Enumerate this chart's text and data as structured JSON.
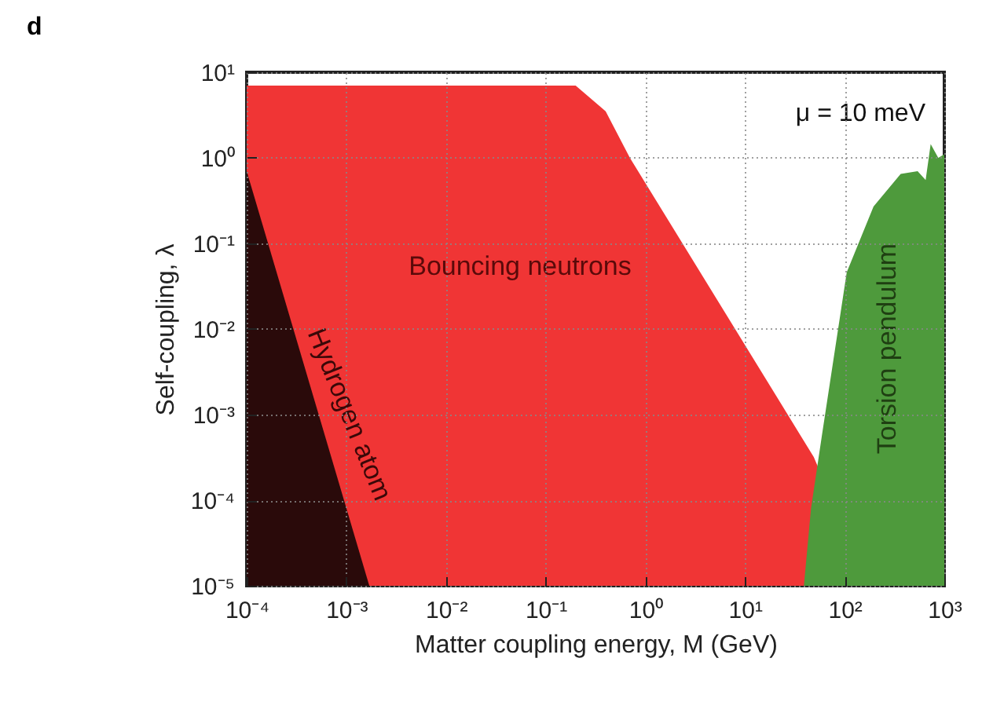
{
  "chart_data": {
    "type": "area",
    "title": "d",
    "xlabel": "Matter coupling energy, M (GeV)",
    "ylabel": "Self-coupling, λ",
    "log": "xy",
    "grid": true,
    "xlim": [
      0.0001,
      1000
    ],
    "ylim": [
      1e-05,
      10
    ],
    "xticks": [
      {
        "value": 0.0001,
        "label": "10⁻⁴"
      },
      {
        "value": 0.001,
        "label": "10⁻³"
      },
      {
        "value": 0.01,
        "label": "10⁻²"
      },
      {
        "value": 0.1,
        "label": "10⁻¹"
      },
      {
        "value": 1,
        "label": "10⁰"
      },
      {
        "value": 10,
        "label": "10¹"
      },
      {
        "value": 100,
        "label": "10²"
      },
      {
        "value": 1000,
        "label": "10³"
      }
    ],
    "yticks": [
      {
        "value": 1e-05,
        "label": "10⁻⁵"
      },
      {
        "value": 0.0001,
        "label": "10⁻⁴"
      },
      {
        "value": 0.001,
        "label": "10⁻³"
      },
      {
        "value": 0.01,
        "label": "10⁻²"
      },
      {
        "value": 0.1,
        "label": "10⁻¹"
      },
      {
        "value": 1,
        "label": "10⁰"
      },
      {
        "value": 10,
        "label": "10¹"
      }
    ],
    "series": [
      {
        "color": "#f03535",
        "x": [
          0.0001,
          0.2,
          0.4,
          0.7,
          49,
          173
        ],
        "values": [
          7,
          7,
          3.5,
          1,
          0.00032,
          1e-05
        ]
      },
      {
        "color": "#2a0a0a",
        "x": [
          0.0001,
          0.0017
        ],
        "values": [
          0.7,
          1e-05
        ]
      },
      {
        "color": "#4e9a3c",
        "x": [
          39,
          46,
          59,
          105,
          195,
          365,
          540,
          650,
          730,
          870,
          1000
        ],
        "values": [
          1e-05,
          8e-05,
          0.00056,
          0.046,
          0.27,
          0.65,
          0.7,
          0.55,
          1.45,
          1.0,
          1.1
        ]
      }
    ],
    "annotations": [
      "Bouncing neutrons",
      "Hydrogen atom",
      "Torsion pendulum",
      "μ = 10 meV"
    ]
  }
}
